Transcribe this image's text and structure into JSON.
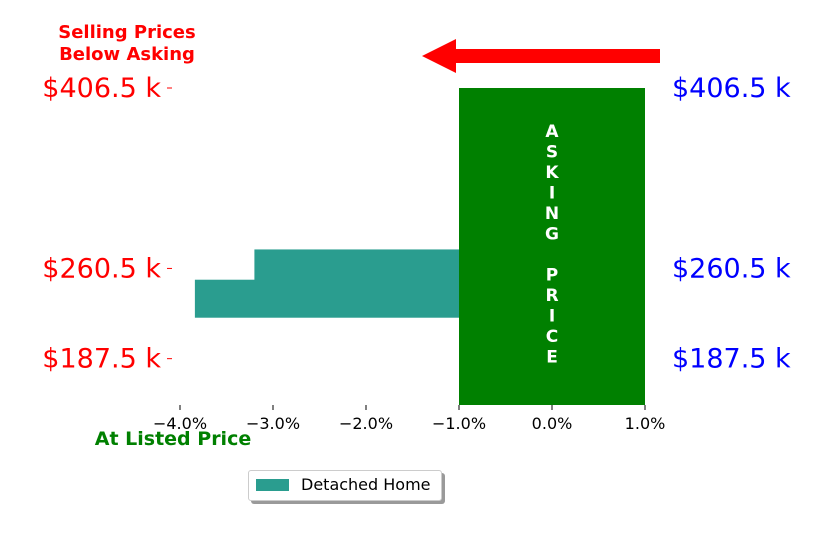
{
  "chart_data": {
    "type": "bar",
    "orientation": "horizontal",
    "title": "",
    "xlabel": "",
    "ylabel": "",
    "xlim": [
      -4.0,
      1.0
    ],
    "xticks": [
      -4.0,
      -3.0,
      -2.0,
      -1.0,
      0.0,
      1.0
    ],
    "xtick_labels": [
      "−4.0%",
      "−3.0%",
      "−2.0%",
      "−1.0%",
      "0.0%",
      "1.0%"
    ],
    "ylim": [
      150,
      420
    ],
    "yticks": [
      187.5,
      260.5,
      406.5
    ],
    "left_tick_labels": [
      "$187.5 k",
      "$260.5 k",
      "$406.5 k"
    ],
    "right_tick_labels": [
      "$187.5 k",
      "$260.5 k",
      "$406.5 k"
    ],
    "grid": false,
    "legend_position": "bottom-center",
    "series": [
      {
        "name": "Detached Home",
        "color": "#2a9d8f",
        "bars": [
          {
            "y": 260.5,
            "value": -3.2
          },
          {
            "y": 236.0,
            "value": -3.84
          }
        ]
      }
    ],
    "band": {
      "color": "#008000",
      "x_start": -1.0,
      "x_end": 1.0,
      "y_start": 150,
      "y_end": 406.5,
      "text": [
        "A",
        "S",
        "K",
        "I",
        "N",
        "G",
        "",
        "P",
        "R",
        "I",
        "C",
        "E"
      ]
    },
    "annotations": {
      "top_left": [
        "Selling Prices",
        "Below Asking"
      ],
      "bottom_left": "At Listed Price",
      "arrow": {
        "color": "#ff0000",
        "direction": "left"
      }
    },
    "colors": {
      "left_labels": "#ff0000",
      "right_labels": "#0000ff",
      "top_left_annotation": "#ff0000",
      "bottom_left_annotation": "#008000"
    }
  }
}
